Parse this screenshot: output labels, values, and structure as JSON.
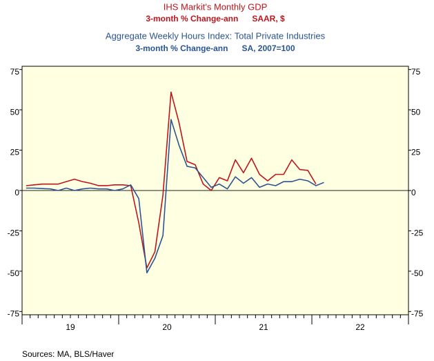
{
  "chart_data": {
    "type": "line",
    "series": [
      {
        "name": "IHS Markit's Monthly GDP",
        "subtitle": "3-month % Change-ann      SAAR, $",
        "color": "#c0141c",
        "values": [
          3,
          3.5,
          4,
          4,
          4,
          5.5,
          7,
          5.5,
          4.5,
          3,
          3,
          3.5,
          3.5,
          3,
          -20,
          -48,
          -38,
          -3,
          61,
          42,
          18,
          16,
          4,
          0,
          8,
          6,
          19,
          11,
          20,
          10,
          6,
          10,
          10,
          19,
          13,
          12.5,
          4,
          null
        ]
      },
      {
        "name": "Aggregate Weekly Hours Index: Total Private Industries",
        "subtitle": "3-month % Change-ann      SA, 2007=100",
        "color": "#2a5592",
        "values": [
          1.5,
          1.5,
          1.2,
          1,
          0,
          1.5,
          0,
          1,
          1.5,
          1,
          1,
          0,
          1,
          3.5,
          -5,
          -51,
          -42,
          -28,
          44,
          28,
          15,
          14,
          8,
          2,
          4,
          1,
          8.5,
          4.5,
          8,
          2,
          4,
          3,
          5.5,
          5.5,
          7,
          6,
          3,
          5
        ]
      }
    ],
    "x": [
      2019.042,
      2019.125,
      2019.208,
      2019.292,
      2019.375,
      2019.458,
      2019.542,
      2019.625,
      2019.708,
      2019.792,
      2019.875,
      2019.958,
      2020.042,
      2020.125,
      2020.208,
      2020.292,
      2020.375,
      2020.458,
      2020.542,
      2020.625,
      2020.708,
      2020.792,
      2020.875,
      2020.958,
      2021.042,
      2021.125,
      2021.208,
      2021.292,
      2021.375,
      2021.458,
      2021.542,
      2021.625,
      2021.708,
      2021.792,
      2021.875,
      2021.958,
      2022.042,
      2022.125
    ],
    "xlim": [
      2019,
      2023
    ],
    "xticks": [
      {
        "value": 2019.5,
        "label": "19"
      },
      {
        "value": 2020.5,
        "label": "20"
      },
      {
        "value": 2021.5,
        "label": "21"
      },
      {
        "value": 2022.5,
        "label": "22"
      }
    ],
    "ylim": [
      -77,
      77
    ],
    "yticks": [
      -75,
      -50,
      -25,
      0,
      25,
      50,
      75
    ],
    "right_axis_labels": true,
    "background": "#ffffe1",
    "note": "Sources:  MA, BLS/Haver"
  }
}
